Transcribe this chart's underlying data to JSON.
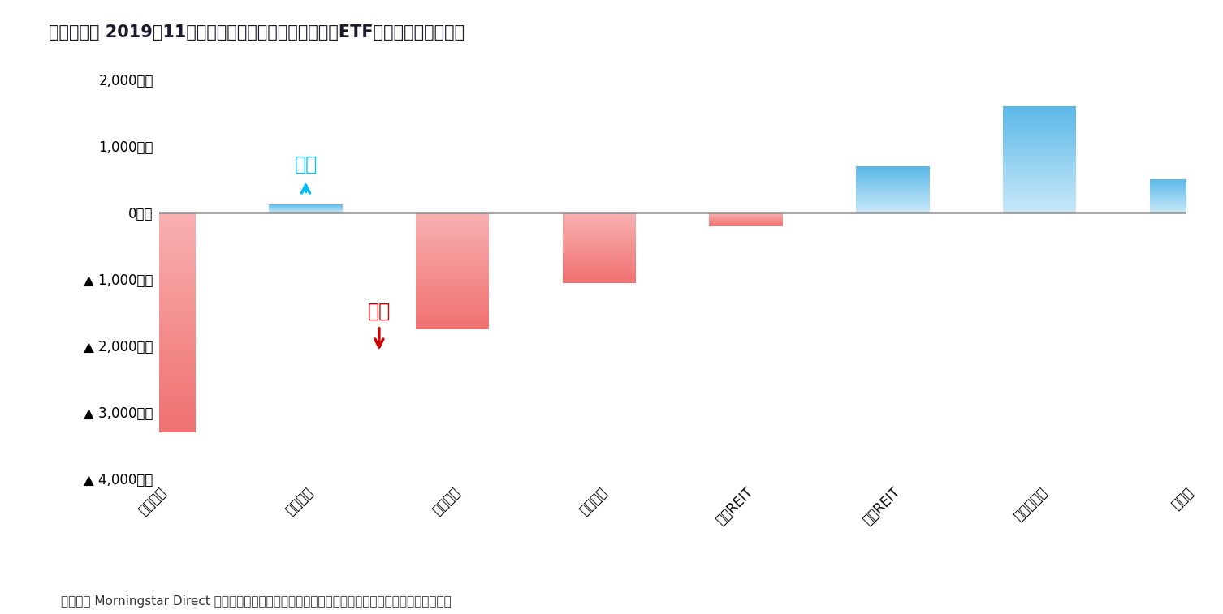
{
  "title": "》図表１》 2019年11月の日本籍追加型株式投信（除くETF）の推計資金流出入",
  "title_raw": "【図表１】 2019年11月の日本籍追加型株式投信（除くETF）の推計資金流出入",
  "categories": [
    "国内株式",
    "国内債券",
    "外国株式",
    "外国債券",
    "国内REIT",
    "外国REIT",
    "バランス型",
    "その他"
  ],
  "values": [
    -3300,
    130,
    -1750,
    -1050,
    -200,
    700,
    1600,
    500
  ],
  "ylim": [
    -4000,
    2000
  ],
  "yticks": [
    2000,
    1000,
    0,
    -1000,
    -2000,
    -3000,
    -4000
  ],
  "ytick_labels": [
    "2,000億円",
    "1,000億円",
    "0億円",
    "▲ 1,000億円",
    "▲ 2,000億円",
    "▲ 3,000億円",
    "▲ 4,000億円"
  ],
  "inflow_label": "流入",
  "outflow_label": "流出",
  "inflow_color": "#00BFFF",
  "outflow_color": "#CC0000",
  "zero_line_color": "#888888",
  "background_color": "#FFFFFF",
  "footer": "（資料） Morningstar Direct より作成。各資産クラスはイボットソン分類を用いてファンドを分類。",
  "title_fontsize": 15,
  "tick_fontsize": 12,
  "footer_fontsize": 11,
  "annotation_fontsize": 17,
  "bar_width": 0.5,
  "pos_color_top": "#5BB8E8",
  "pos_color_bottom": "#C8E8F8",
  "neg_color_top": "#F8B0B0",
  "neg_color_bottom": "#F07070"
}
